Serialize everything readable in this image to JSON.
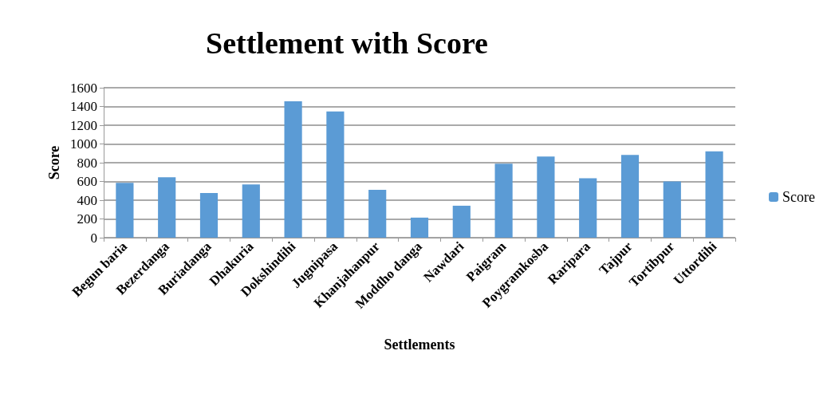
{
  "chart_data": {
    "type": "bar",
    "title": "Settlement with Score",
    "xlabel": "Settlements",
    "ylabel": "Score",
    "categories": [
      "Begun baria",
      "Bezerdanga",
      "Buriadanga",
      "Dhakuria",
      "Dokshindihi",
      "Jugnipasa",
      "Khanjahanpur",
      "Moddho danga",
      "Nawdari",
      "Paigram",
      "Poygramkosba",
      "Raripara",
      "Tajpur",
      "Tortibpur",
      "Uttordihi"
    ],
    "series": [
      {
        "name": "Score",
        "color": "#5b9bd5",
        "values": [
          585,
          645,
          476,
          569,
          1456,
          1346,
          510,
          214,
          341,
          789,
          865,
          634,
          882,
          600,
          921
        ]
      }
    ],
    "ylim": [
      0,
      1600
    ],
    "yticks": [
      0,
      200,
      400,
      600,
      800,
      1000,
      1200,
      1400,
      1600
    ],
    "grid": "y",
    "legend": "right"
  }
}
